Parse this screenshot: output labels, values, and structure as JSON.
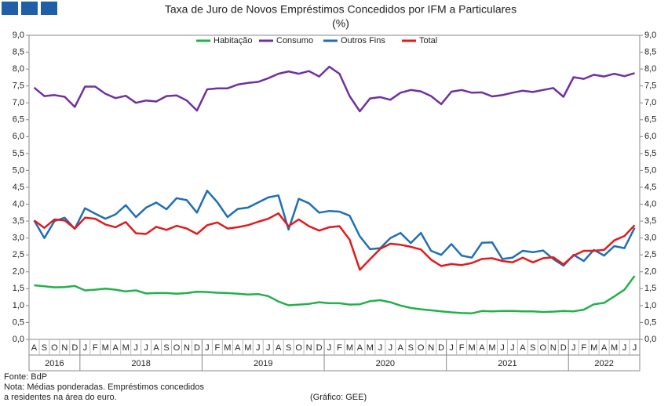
{
  "chart_data": {
    "type": "line",
    "title": "Taxa de Juro de Novos Empréstimos Concedidos por IFM a Particulares",
    "subtitle": "(%)",
    "categories": [
      "A",
      "S",
      "O",
      "N",
      "D",
      "J",
      "F",
      "M",
      "A",
      "M",
      "J",
      "J",
      "A",
      "S",
      "O",
      "N",
      "D",
      "J",
      "F",
      "M",
      "A",
      "M",
      "J",
      "J",
      "A",
      "S",
      "O",
      "N",
      "D",
      "J",
      "F",
      "M",
      "A",
      "M",
      "J",
      "J",
      "A",
      "S",
      "O",
      "N",
      "D",
      "J",
      "F",
      "M",
      "A",
      "M",
      "J",
      "J",
      "A",
      "S",
      "O",
      "N",
      "D",
      "J",
      "F",
      "M",
      "A",
      "M",
      "J",
      "J"
    ],
    "years": [
      "2016",
      "2018",
      "2019",
      "2020",
      "2021",
      "2022"
    ],
    "series": [
      {
        "name": "Habitação",
        "color": "#22b04b",
        "values": [
          1.6,
          1.57,
          1.54,
          1.55,
          1.58,
          1.45,
          1.47,
          1.5,
          1.47,
          1.42,
          1.45,
          1.36,
          1.37,
          1.37,
          1.35,
          1.37,
          1.41,
          1.4,
          1.38,
          1.37,
          1.35,
          1.33,
          1.34,
          1.28,
          1.12,
          1.01,
          1.03,
          1.05,
          1.1,
          1.07,
          1.07,
          1.03,
          1.04,
          1.13,
          1.16,
          1.1,
          1.0,
          0.93,
          0.89,
          0.86,
          0.83,
          0.8,
          0.78,
          0.77,
          0.84,
          0.83,
          0.84,
          0.84,
          0.83,
          0.83,
          0.81,
          0.82,
          0.84,
          0.83,
          0.88,
          1.04,
          1.08,
          1.27,
          1.47,
          1.88
        ]
      },
      {
        "name": "Consumo",
        "color": "#7030a0",
        "values": [
          7.45,
          7.2,
          7.23,
          7.18,
          6.88,
          7.48,
          7.48,
          7.27,
          7.14,
          7.21,
          7.0,
          7.07,
          7.04,
          7.2,
          7.22,
          7.07,
          6.77,
          7.4,
          7.43,
          7.43,
          7.54,
          7.59,
          7.62,
          7.73,
          7.86,
          7.93,
          7.86,
          7.94,
          7.78,
          8.07,
          7.86,
          7.2,
          6.75,
          7.13,
          7.17,
          7.09,
          7.3,
          7.38,
          7.34,
          7.2,
          6.96,
          7.33,
          7.38,
          7.3,
          7.31,
          7.19,
          7.23,
          7.3,
          7.36,
          7.32,
          7.38,
          7.44,
          7.18,
          7.76,
          7.71,
          7.83,
          7.78,
          7.86,
          7.79,
          7.88
        ]
      },
      {
        "name": "Outros Fins",
        "color": "#1f6fb4",
        "values": [
          3.52,
          3.0,
          3.5,
          3.6,
          3.27,
          3.88,
          3.72,
          3.57,
          3.7,
          3.97,
          3.62,
          3.9,
          4.05,
          3.85,
          4.18,
          4.12,
          3.75,
          4.4,
          4.06,
          3.62,
          3.86,
          3.9,
          4.05,
          4.2,
          4.26,
          3.25,
          4.16,
          4.03,
          3.75,
          3.8,
          3.78,
          3.66,
          3.05,
          2.67,
          2.7,
          3.0,
          3.15,
          2.85,
          3.15,
          2.62,
          2.5,
          2.82,
          2.48,
          2.42,
          2.86,
          2.87,
          2.38,
          2.42,
          2.62,
          2.58,
          2.63,
          2.38,
          2.18,
          2.5,
          2.32,
          2.65,
          2.48,
          2.76,
          2.7,
          3.3
        ]
      },
      {
        "name": "Total",
        "color": "#e31a1c",
        "values": [
          3.52,
          3.3,
          3.55,
          3.52,
          3.28,
          3.6,
          3.57,
          3.4,
          3.32,
          3.47,
          3.14,
          3.12,
          3.33,
          3.24,
          3.36,
          3.28,
          3.12,
          3.38,
          3.46,
          3.28,
          3.32,
          3.38,
          3.48,
          3.57,
          3.73,
          3.35,
          3.55,
          3.35,
          3.22,
          3.32,
          3.35,
          2.95,
          2.06,
          2.37,
          2.68,
          2.83,
          2.8,
          2.74,
          2.66,
          2.36,
          2.17,
          2.23,
          2.2,
          2.26,
          2.38,
          2.4,
          2.32,
          2.28,
          2.42,
          2.28,
          2.4,
          2.43,
          2.22,
          2.48,
          2.62,
          2.62,
          2.65,
          2.93,
          3.06,
          3.38
        ]
      }
    ],
    "ylim": [
      0,
      9
    ],
    "yticks": [
      {
        "value": 0,
        "label": "0,0"
      },
      {
        "value": 0.5,
        "label": "0,5"
      },
      {
        "value": 1,
        "label": "1,0"
      },
      {
        "value": 1.5,
        "label": "1,5"
      },
      {
        "value": 2,
        "label": "2,0"
      },
      {
        "value": 2.5,
        "label": "2,5"
      },
      {
        "value": 3,
        "label": "3,0"
      },
      {
        "value": 3.5,
        "label": "3,5"
      },
      {
        "value": 4,
        "label": "4,0"
      },
      {
        "value": 4.5,
        "label": "4,5"
      },
      {
        "value": 5,
        "label": "5,0"
      },
      {
        "value": 5.5,
        "label": "5,5"
      },
      {
        "value": 6,
        "label": "6,0"
      },
      {
        "value": 6.5,
        "label": "6,5"
      },
      {
        "value": 7,
        "label": "7,0"
      },
      {
        "value": 7.5,
        "label": "7,5"
      },
      {
        "value": 8,
        "label": "8,0"
      },
      {
        "value": 8.5,
        "label": "8,5"
      },
      {
        "value": 9,
        "label": "9,0"
      }
    ],
    "y2lim": [
      0,
      9
    ],
    "y2ticks": [
      {
        "value": 0,
        "label": "0,0"
      },
      {
        "value": 0.5,
        "label": "0,5"
      },
      {
        "value": 1,
        "label": "1,0"
      },
      {
        "value": 1.5,
        "label": "1,5"
      },
      {
        "value": 2,
        "label": "2,0"
      },
      {
        "value": 2.5,
        "label": "2,5"
      },
      {
        "value": 3,
        "label": "3,0"
      },
      {
        "value": 3.5,
        "label": "3,5"
      },
      {
        "value": 4,
        "label": "4,0"
      },
      {
        "value": 4.5,
        "label": "4,5"
      },
      {
        "value": 5,
        "label": "5,0"
      },
      {
        "value": 5.5,
        "label": "5,5"
      },
      {
        "value": 6,
        "label": "6,0"
      },
      {
        "value": 6.5,
        "label": "6,5"
      },
      {
        "value": 7,
        "label": "7,0"
      },
      {
        "value": 7.5,
        "label": "7,5"
      },
      {
        "value": 8,
        "label": "8,0"
      },
      {
        "value": 8.5,
        "label": "8,5"
      },
      {
        "value": 9,
        "label": "9,0"
      }
    ],
    "legend": "top",
    "notes": [
      "Fonte: BdP",
      "Nota: Médias ponderadas. Empréstimos concedidos",
      "a residentes na área do euro."
    ],
    "credit": "(Gráfico: GEE)"
  }
}
